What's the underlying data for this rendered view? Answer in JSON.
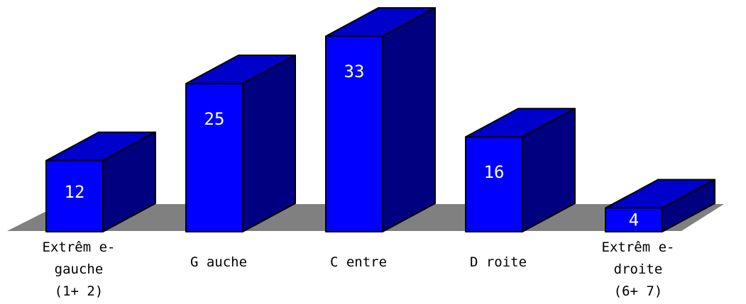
{
  "chart_data": {
    "type": "bar",
    "style": "3d-column",
    "categories": [
      [
        "Extrêm e-",
        "gauche",
        "(1+ 2)"
      ],
      [
        "G auche"
      ],
      [
        "C entre"
      ],
      [
        "D roite"
      ],
      [
        "Extrêm e-",
        "droite",
        "(6+ 7)"
      ]
    ],
    "values": [
      12,
      25,
      33,
      16,
      4
    ],
    "value_labels": [
      "12",
      "25",
      "33",
      "16",
      "4"
    ],
    "ylim": [
      0,
      33
    ],
    "grid": false,
    "legend": "none",
    "colors": {
      "front": "#0000ff",
      "top": "#0000cc",
      "side": "#000080",
      "floor": "#808080",
      "outline": "#000000"
    }
  }
}
